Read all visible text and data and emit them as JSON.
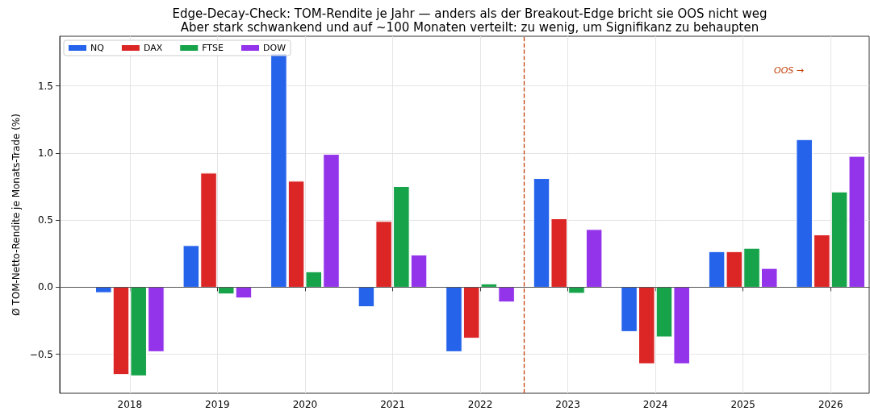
{
  "chart_data": {
    "type": "bar",
    "title": "Edge-Decay-Check: TOM-Rendite je Jahr — anders als der Breakout-Edge bricht sie OOS nicht weg",
    "subtitle": "Aber stark schwankend und auf ~100 Monaten verteilt: zu wenig, um Signifikanz zu behaupten",
    "ylabel": "Ø TOM-Netto-Rendite je Monats-Trade (%)",
    "x": [
      2018,
      2019,
      2020,
      2021,
      2022,
      2023,
      2024,
      2025,
      2026
    ],
    "xlim": [
      2017.2,
      2026.44
    ],
    "xticks": [
      2018,
      2019,
      2020,
      2021,
      2022,
      2023,
      2024,
      2025,
      2026
    ],
    "ylim": [
      -0.79,
      1.87
    ],
    "yticks": [
      {
        "value": -0.5,
        "label": "−0.5"
      },
      {
        "value": 0,
        "label": "0.0"
      },
      {
        "value": 0.5,
        "label": "0.5"
      },
      {
        "value": 1,
        "label": "1.0"
      },
      {
        "value": 1.5,
        "label": "1.5"
      }
    ],
    "series": [
      {
        "name": "NQ",
        "color": "#2563eb",
        "values": [
          -0.04,
          0.31,
          1.74,
          -0.145,
          -0.48,
          0.81,
          -0.33,
          0.265,
          1.1
        ]
      },
      {
        "name": "DAX",
        "color": "#dc2626",
        "values": [
          -0.65,
          0.85,
          0.79,
          0.49,
          -0.38,
          0.51,
          -0.57,
          0.265,
          0.39
        ]
      },
      {
        "name": "FTSE",
        "color": "#16a34a",
        "values": [
          -0.66,
          -0.05,
          0.115,
          0.75,
          0.025,
          -0.045,
          -0.37,
          0.29,
          0.71
        ]
      },
      {
        "name": "DOW",
        "color": "#9333ea",
        "values": [
          -0.48,
          -0.08,
          0.99,
          0.24,
          -0.11,
          0.43,
          -0.57,
          0.14,
          0.975
        ]
      }
    ],
    "ref_lines": [
      {
        "axis": "x",
        "value": 2022.5,
        "color": "#c2410c",
        "line_style": "dashed"
      },
      {
        "axis": "y",
        "value": 0,
        "color": "#555555",
        "line_style": "solid"
      }
    ],
    "annotations": [
      "OOS →"
    ],
    "grid": true,
    "legend": "top left"
  }
}
